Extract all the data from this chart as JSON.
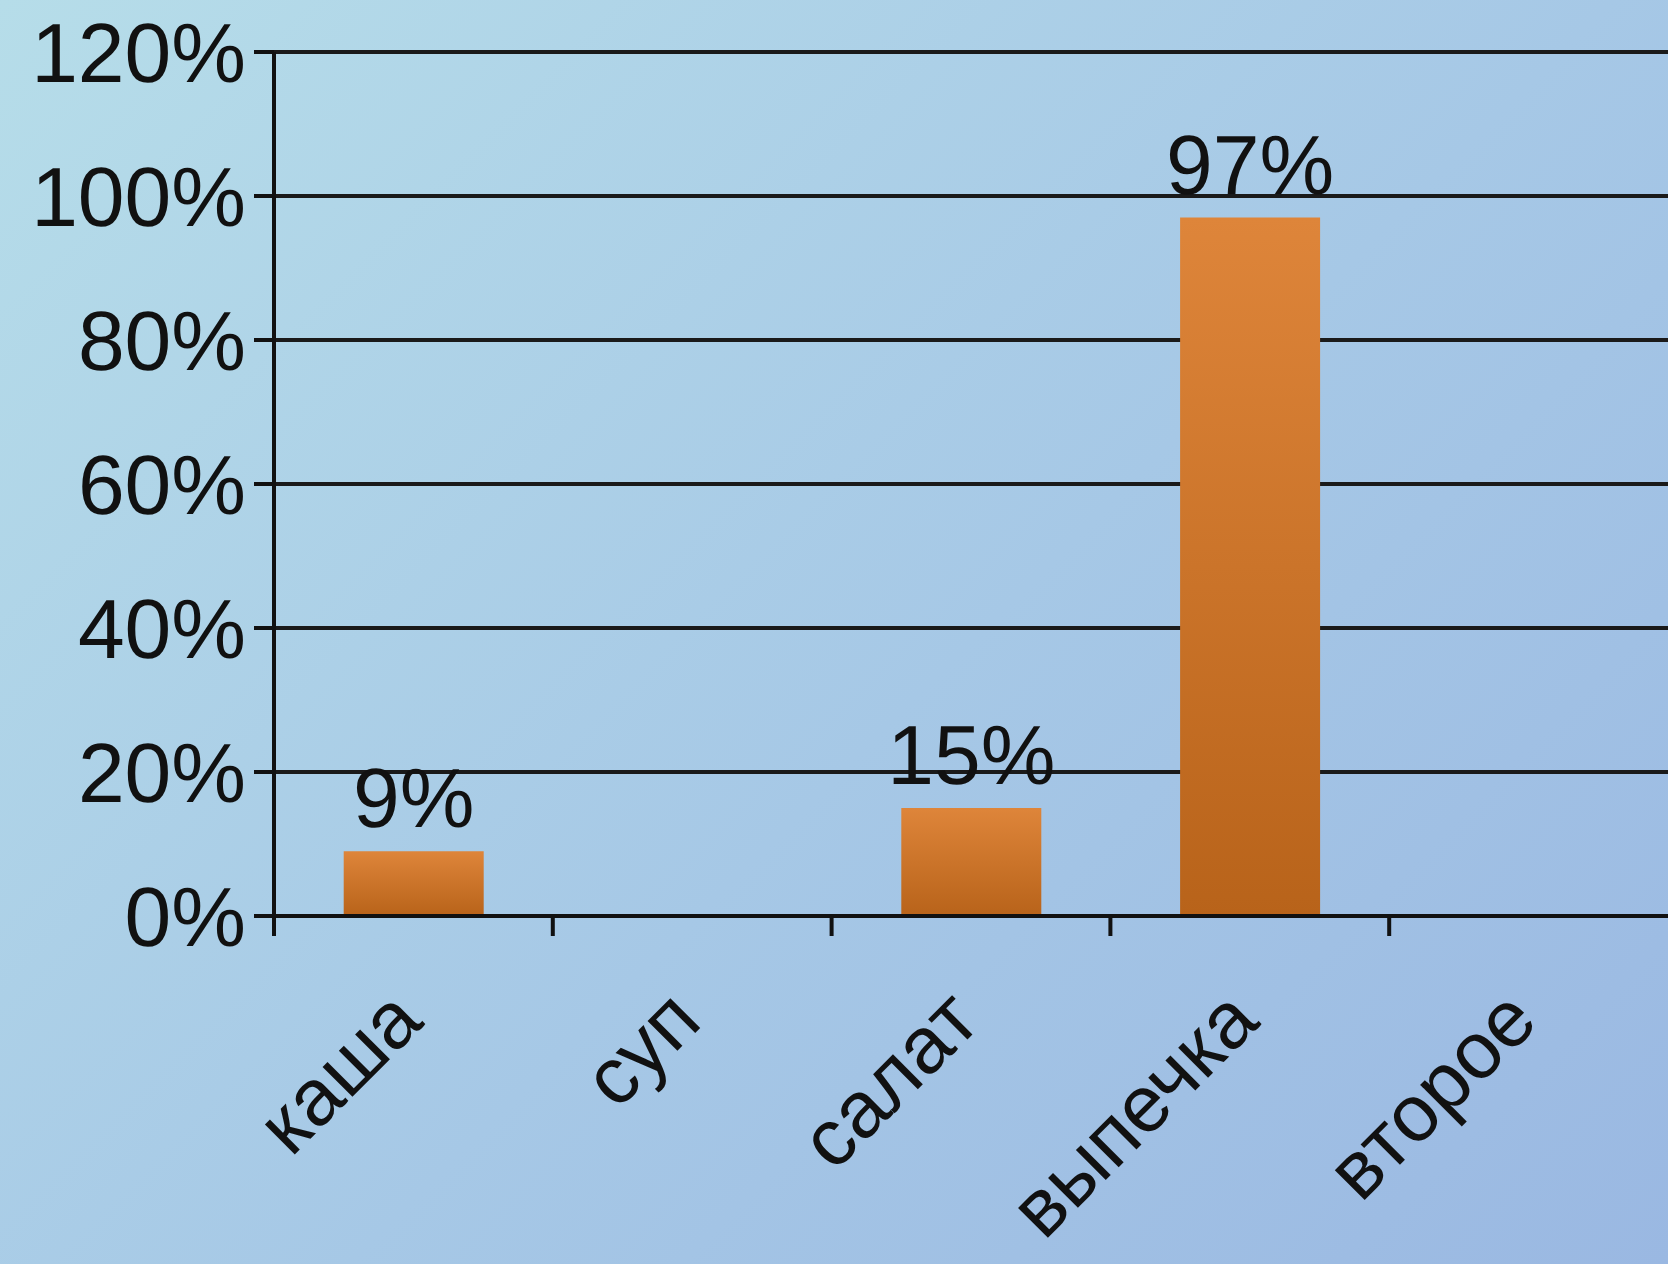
{
  "chart_data": {
    "type": "bar",
    "categories": [
      "каша",
      "суп",
      "салат",
      "выпечка",
      "второе"
    ],
    "values": [
      9,
      null,
      15,
      97,
      null
    ],
    "value_labels": [
      "9%",
      null,
      "15%",
      "97%",
      null
    ],
    "color": "#d9741f",
    "ylim": [
      0,
      120
    ],
    "yticks": [
      {
        "value": 0,
        "label": "0%"
      },
      {
        "value": 20,
        "label": "20%"
      },
      {
        "value": 40,
        "label": "40%"
      },
      {
        "value": 60,
        "label": "60%"
      },
      {
        "value": 80,
        "label": "80%"
      },
      {
        "value": 100,
        "label": "100%"
      },
      {
        "value": 120,
        "label": "120%"
      }
    ],
    "grid": "y"
  }
}
